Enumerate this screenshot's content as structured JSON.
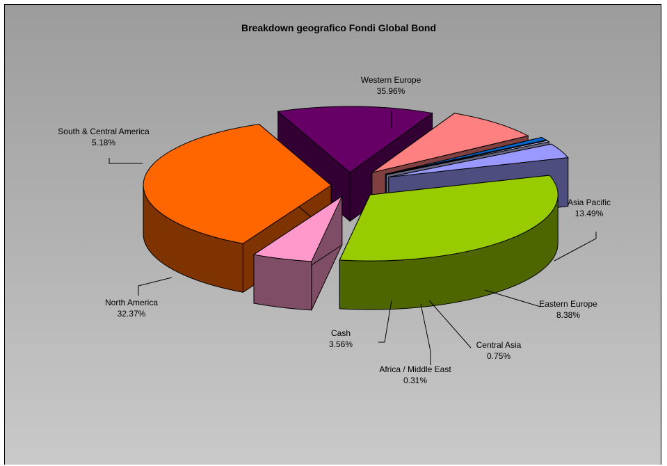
{
  "chart_data": {
    "type": "pie",
    "title": "Breakdown geografico Fondi Global Bond",
    "slices": [
      {
        "name": "Western Europe",
        "value": 35.96,
        "label": "35.96%",
        "color": "#ff6600",
        "side": "#7f3300"
      },
      {
        "name": "Asia Pacific",
        "value": 13.49,
        "label": "13.49%",
        "color": "#660066",
        "side": "#330033"
      },
      {
        "name": "Eastern Europe",
        "value": 8.38,
        "label": "8.38%",
        "color": "#ff8080",
        "side": "#804040"
      },
      {
        "name": "Central Asia",
        "value": 0.75,
        "label": "0.75%",
        "color": "#0066cc",
        "side": "#003366"
      },
      {
        "name": "Africa / Middle East",
        "value": 0.31,
        "label": "0.31%",
        "color": "#ccccff",
        "side": "#666680"
      },
      {
        "name": "Cash",
        "value": 3.56,
        "label": "3.56%",
        "color": "#9999ff",
        "side": "#4d4d80"
      },
      {
        "name": "North America",
        "value": 32.37,
        "label": "32.37%",
        "color": "#99cc00",
        "side": "#4d6600"
      },
      {
        "name": "South & Central America",
        "value": 5.18,
        "label": "5.18%",
        "color": "#ff99cc",
        "side": "#804d66"
      }
    ],
    "legend": "none",
    "style": "3d-exploded-pie"
  }
}
